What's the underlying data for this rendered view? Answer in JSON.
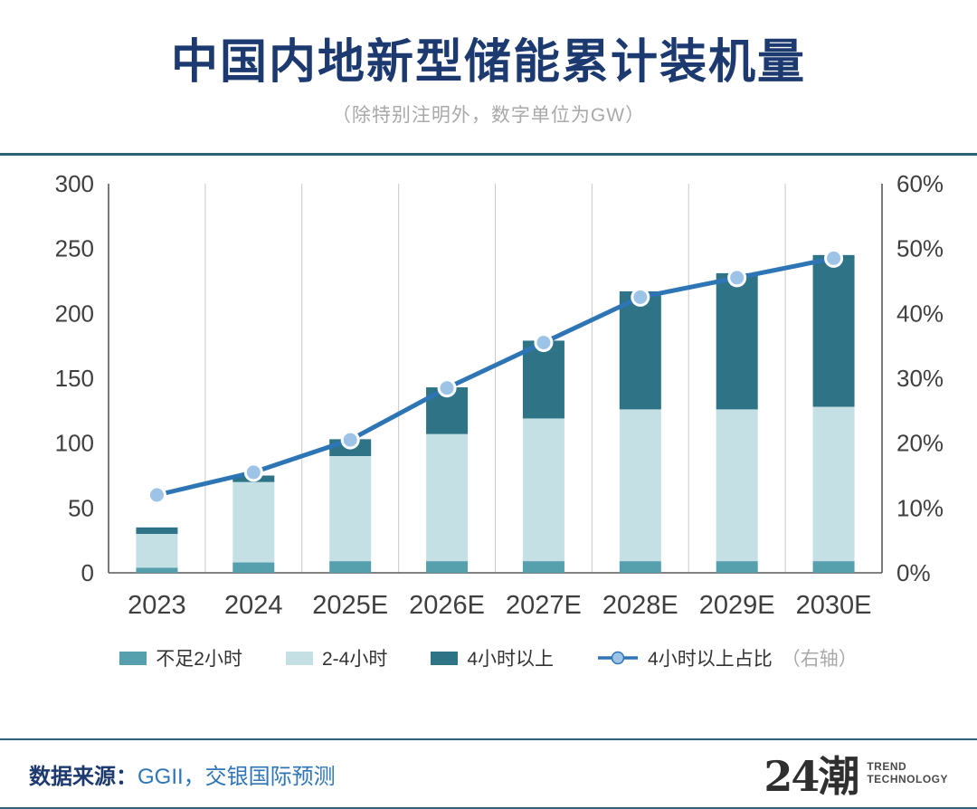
{
  "header": {
    "title": "中国内地新型储能累计装机量",
    "subtitle": "（除特别注明外，数字单位为GW）"
  },
  "footer": {
    "source_label": "数据来源：",
    "source_text": "GGII，交银国际预测",
    "logo_text": "24潮",
    "logo_line1": "TREND",
    "logo_line2": "TECHNOLOGY"
  },
  "colors": {
    "title": "#1d3a70",
    "divider": "#2e607c",
    "source_link": "#2e75b6",
    "axis_line": "#595959",
    "gridline": "#c9c9c9"
  },
  "chart_data": {
    "type": "bar",
    "title": "中国内地新型储能累计装机量",
    "unit": "GW",
    "categories": [
      "2023",
      "2024",
      "2025E",
      "2026E",
      "2027E",
      "2028E",
      "2029E",
      "2030E"
    ],
    "series": [
      {
        "name": "不足2小时",
        "type": "bar",
        "axis": "left",
        "color": "#56a0ae",
        "values": [
          4,
          8,
          9,
          9,
          9,
          9,
          9,
          9
        ]
      },
      {
        "name": "2-4小时",
        "type": "bar",
        "axis": "left",
        "color": "#c5e0e4",
        "values": [
          26,
          62,
          81,
          98,
          110,
          117,
          117,
          119
        ]
      },
      {
        "name": "4小时以上",
        "type": "bar",
        "axis": "left",
        "color": "#2e7486",
        "values": [
          5,
          5,
          13,
          36,
          60,
          91,
          105,
          117
        ]
      },
      {
        "name": "4小时以上占比",
        "suffix": "（右轴）",
        "type": "line",
        "axis": "right",
        "color": "#2e75b6",
        "marker_fill": "#9dc3e6",
        "marker_stroke": "#ffffff",
        "values": [
          12,
          15.5,
          20.5,
          28.5,
          35.5,
          42.5,
          45.5,
          48.5
        ]
      }
    ],
    "left_axis": {
      "min": 0,
      "max": 300,
      "step": 50
    },
    "right_axis": {
      "min": 0,
      "max": 60,
      "step": 10,
      "suffix": "%"
    },
    "legend_position": "bottom",
    "grid": "vertical-only"
  }
}
